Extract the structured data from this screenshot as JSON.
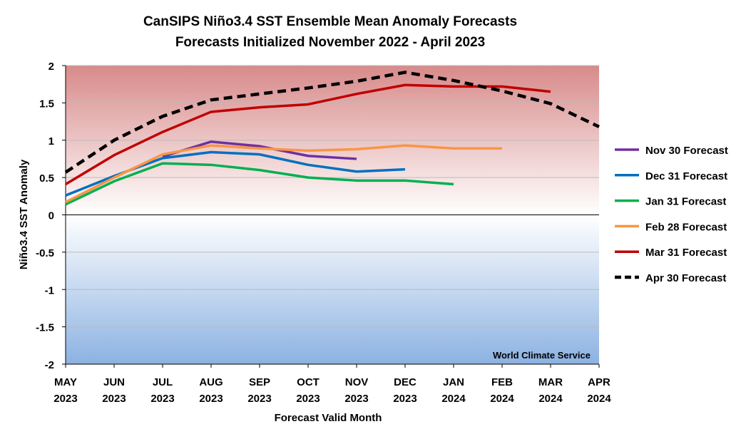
{
  "chart_data": {
    "type": "line",
    "title": "CanSIPS Niño3.4 SST Ensemble Mean Anomaly Forecasts",
    "subtitle": "Forecasts Initialized November 2022 - April 2023",
    "x_label": "Forecast Valid Month",
    "y_label": "Niño3.4 SST Anomaly",
    "annotation": "World Climate Service",
    "categories": [
      "MAY 2023",
      "JUN 2023",
      "JUL 2023",
      "AUG 2023",
      "SEP 2023",
      "OCT 2023",
      "NOV 2023",
      "DEC 2023",
      "JAN 2024",
      "FEB 2024",
      "MAR 2024",
      "APR 2024"
    ],
    "ylim": [
      -2,
      2
    ],
    "yticks": [
      -2,
      -1.5,
      -1,
      -0.5,
      0,
      0.5,
      1,
      1.5,
      2
    ],
    "grid": true,
    "legend": "right",
    "series": [
      {
        "name": "Nov 30 Forecast",
        "color": "#7030a0",
        "dash": false,
        "values": [
          null,
          null,
          0.78,
          0.98,
          0.92,
          0.79,
          0.75,
          null,
          null,
          null,
          null,
          null
        ]
      },
      {
        "name": "Dec 31 Forecast",
        "color": "#0070c0",
        "dash": false,
        "values": [
          0.26,
          0.52,
          0.76,
          0.84,
          0.81,
          0.67,
          0.58,
          0.61,
          null,
          null,
          null,
          null
        ]
      },
      {
        "name": "Jan 31 Forecast",
        "color": "#00b050",
        "dash": false,
        "values": [
          0.14,
          0.45,
          0.69,
          0.67,
          0.6,
          0.5,
          0.46,
          0.46,
          0.41,
          null,
          null,
          null
        ]
      },
      {
        "name": "Feb 28 Forecast",
        "color": "#f79646",
        "dash": false,
        "values": [
          0.17,
          0.5,
          0.81,
          0.93,
          0.89,
          0.86,
          0.88,
          0.93,
          0.89,
          0.89,
          null,
          null
        ]
      },
      {
        "name": "Mar 31 Forecast",
        "color": "#c00000",
        "dash": false,
        "values": [
          0.41,
          0.8,
          1.11,
          1.38,
          1.44,
          1.48,
          1.62,
          1.74,
          1.72,
          1.72,
          1.65,
          null
        ]
      },
      {
        "name": "Apr 30 Forecast",
        "color": "#000000",
        "dash": true,
        "values": [
          0.57,
          1.0,
          1.32,
          1.54,
          1.62,
          1.7,
          1.79,
          1.91,
          1.8,
          1.66,
          1.49,
          1.18
        ]
      }
    ]
  }
}
